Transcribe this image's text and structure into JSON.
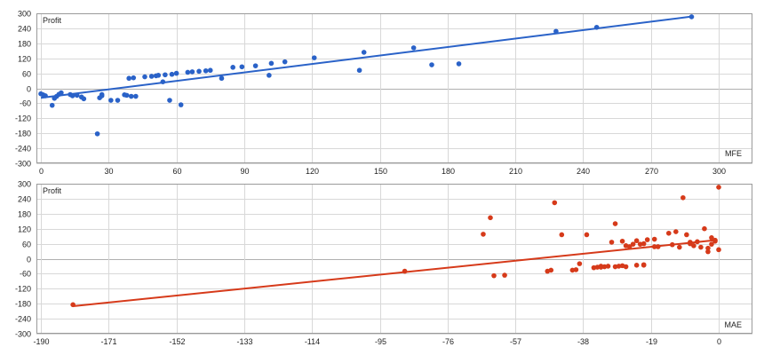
{
  "chart_data": [
    {
      "type": "scatter",
      "ylabel": "Profit",
      "xlabel": "MFE",
      "xlim": [
        0,
        300
      ],
      "ylim": [
        -300,
        300
      ],
      "xticks": [
        0,
        30,
        60,
        90,
        120,
        150,
        180,
        210,
        240,
        270,
        300
      ],
      "yticks": [
        300,
        240,
        180,
        120,
        60,
        0,
        -60,
        -120,
        -180,
        -240,
        -300
      ],
      "color": "#2a62c8",
      "trendline": {
        "from": [
          0,
          -38
        ],
        "to": [
          288,
          287
        ]
      },
      "points": [
        [
          0,
          -22
        ],
        [
          1,
          -26
        ],
        [
          2,
          -30
        ],
        [
          5,
          -68
        ],
        [
          6,
          -40
        ],
        [
          7,
          -32
        ],
        [
          8,
          -24
        ],
        [
          9,
          -18
        ],
        [
          13,
          -25
        ],
        [
          14,
          -30
        ],
        [
          16,
          -28
        ],
        [
          18,
          -35
        ],
        [
          19,
          -42
        ],
        [
          25,
          -182
        ],
        [
          26,
          -38
        ],
        [
          27,
          -30
        ],
        [
          27,
          -25
        ],
        [
          31,
          -48
        ],
        [
          34,
          -48
        ],
        [
          37,
          -26
        ],
        [
          38,
          -28
        ],
        [
          40,
          -32
        ],
        [
          39,
          40
        ],
        [
          41,
          42
        ],
        [
          42,
          -32
        ],
        [
          46,
          46
        ],
        [
          49,
          48
        ],
        [
          51,
          50
        ],
        [
          52,
          52
        ],
        [
          54,
          26
        ],
        [
          55,
          54
        ],
        [
          57,
          -48
        ],
        [
          58,
          56
        ],
        [
          60,
          60
        ],
        [
          62,
          -66
        ],
        [
          65,
          64
        ],
        [
          67,
          66
        ],
        [
          70,
          68
        ],
        [
          73,
          70
        ],
        [
          75,
          72
        ],
        [
          80,
          40
        ],
        [
          85,
          84
        ],
        [
          89,
          86
        ],
        [
          95,
          90
        ],
        [
          101,
          52
        ],
        [
          102,
          100
        ],
        [
          108,
          106
        ],
        [
          121,
          122
        ],
        [
          141,
          72
        ],
        [
          143,
          144
        ],
        [
          165,
          162
        ],
        [
          173,
          94
        ],
        [
          185,
          98
        ],
        [
          228,
          228
        ],
        [
          246,
          244
        ],
        [
          288,
          286
        ]
      ]
    },
    {
      "type": "scatter",
      "ylabel": "Profit",
      "xlabel": "MAE",
      "xlim": [
        -190,
        0
      ],
      "ylim": [
        -300,
        300
      ],
      "xticks": [
        -190,
        -171,
        -152,
        -133,
        -114,
        -95,
        -76,
        -57,
        -38,
        -19,
        0
      ],
      "yticks": [
        300,
        240,
        180,
        120,
        60,
        0,
        -60,
        -120,
        -180,
        -240,
        -300
      ],
      "color": "#d63a1a",
      "trendline": {
        "from": [
          -181,
          -190
        ],
        "to": [
          -1,
          74
        ]
      },
      "points": [
        [
          -181,
          -184
        ],
        [
          -88,
          -50
        ],
        [
          -66,
          98
        ],
        [
          -64,
          164
        ],
        [
          -63,
          -68
        ],
        [
          -60,
          -66
        ],
        [
          -48,
          -50
        ],
        [
          -47,
          -46
        ],
        [
          -46,
          224
        ],
        [
          -44,
          96
        ],
        [
          -41,
          -46
        ],
        [
          -40,
          -44
        ],
        [
          -39,
          -20
        ],
        [
          -37,
          96
        ],
        [
          -35,
          -36
        ],
        [
          -34,
          -34
        ],
        [
          -33,
          -30
        ],
        [
          -33,
          -34
        ],
        [
          -32,
          -32
        ],
        [
          -31,
          -30
        ],
        [
          -30,
          66
        ],
        [
          -29,
          140
        ],
        [
          -29,
          -32
        ],
        [
          -28,
          -30
        ],
        [
          -27,
          70
        ],
        [
          -27,
          -28
        ],
        [
          -26,
          -32
        ],
        [
          -26,
          52
        ],
        [
          -25,
          48
        ],
        [
          -24,
          58
        ],
        [
          -23,
          -26
        ],
        [
          -23,
          72
        ],
        [
          -22,
          58
        ],
        [
          -21,
          -24
        ],
        [
          -21,
          -26
        ],
        [
          -21,
          60
        ],
        [
          -20,
          76
        ],
        [
          -18,
          78
        ],
        [
          -18,
          48
        ],
        [
          -17,
          48
        ],
        [
          -14,
          102
        ],
        [
          -13,
          56
        ],
        [
          -12,
          108
        ],
        [
          -11,
          46
        ],
        [
          -10,
          244
        ],
        [
          -9,
          96
        ],
        [
          -8,
          66
        ],
        [
          -8,
          60
        ],
        [
          -7,
          52
        ],
        [
          -6,
          68
        ],
        [
          -5,
          46
        ],
        [
          -4,
          120
        ],
        [
          -3,
          28
        ],
        [
          -3,
          42
        ],
        [
          -2,
          58
        ],
        [
          -2,
          84
        ],
        [
          -1,
          70
        ],
        [
          -1,
          74
        ],
        [
          0,
          286
        ],
        [
          0,
          36
        ]
      ]
    }
  ]
}
